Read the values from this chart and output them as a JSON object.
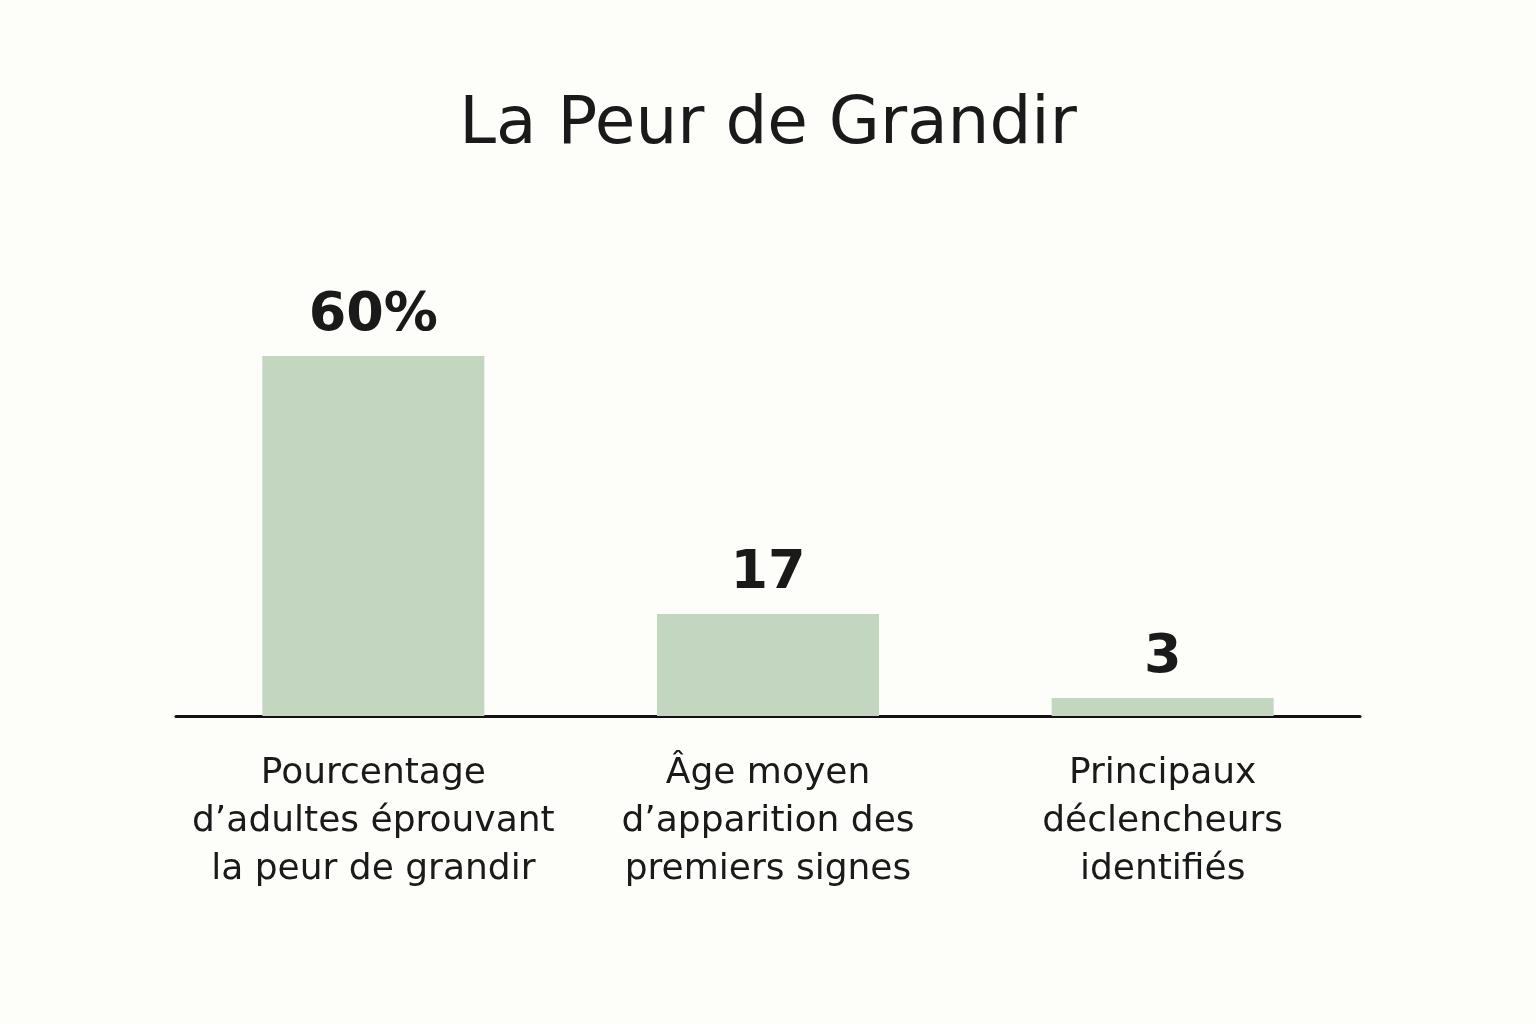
{
  "chart_data": {
    "type": "bar",
    "title": "La Peur de Grandir",
    "categories": [
      "Pourcentage\nd’adultes éprouvant\nla peur de grandir",
      "Âge moyen\nd’apparition des\npremiers signes",
      "Principaux\ndéclencheurs\nidentifiés"
    ],
    "values": [
      60,
      17,
      3
    ],
    "value_labels": [
      "60%",
      "17",
      "3"
    ],
    "color": "#c2d6c0"
  }
}
